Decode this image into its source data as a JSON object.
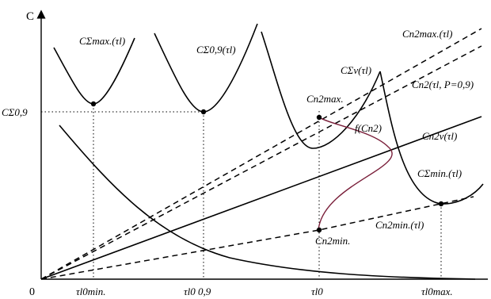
{
  "axes": {
    "y_label": "C",
    "origin_label": "0",
    "y_tick_label": "CΣ0,9"
  },
  "x_ticks": [
    "τl0min.",
    "τl0 0,9",
    "τl0",
    "τl0max."
  ],
  "curve_labels": {
    "c_sigma_max": "CΣmax.(τl)",
    "c_sigma_09": "CΣ0,9(τl)",
    "c_sigma_v": "CΣv(τl)",
    "c_n2_max_fn": "Cn2max.(τl)",
    "c_n2_p": "Cn2(τl, P=0,9)",
    "c_n2v": "Cn2v(τl)",
    "c_sigma_min": "CΣmin.(τl)",
    "c_n2_min_fn": "Cn2min.(τl)",
    "f_cn2": "f(Cn2)"
  },
  "point_labels": {
    "c_n2_max": "Cn2max.",
    "c_n2_min": "Cn2min."
  },
  "colors": {
    "ink": "#000000",
    "link_curve": "#7a1f3a"
  }
}
